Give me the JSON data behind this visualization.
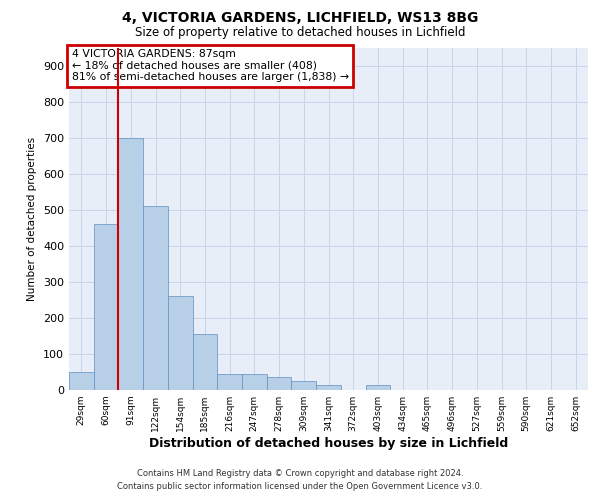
{
  "title_line1": "4, VICTORIA GARDENS, LICHFIELD, WS13 8BG",
  "title_line2": "Size of property relative to detached houses in Lichfield",
  "xlabel": "Distribution of detached houses by size in Lichfield",
  "ylabel": "Number of detached properties",
  "bar_labels": [
    "29sqm",
    "60sqm",
    "91sqm",
    "122sqm",
    "154sqm",
    "185sqm",
    "216sqm",
    "247sqm",
    "278sqm",
    "309sqm",
    "341sqm",
    "372sqm",
    "403sqm",
    "434sqm",
    "465sqm",
    "496sqm",
    "527sqm",
    "559sqm",
    "590sqm",
    "621sqm",
    "652sqm"
  ],
  "bar_values": [
    50,
    460,
    700,
    510,
    260,
    155,
    45,
    45,
    35,
    25,
    15,
    0,
    15,
    0,
    0,
    0,
    0,
    0,
    0,
    0,
    0
  ],
  "bar_color": "#b8cfe8",
  "bar_edge_color": "#6090c0",
  "red_line_color": "#cc0000",
  "box_edge_color": "#cc0000",
  "annotation_line1": "4 VICTORIA GARDENS: 87sqm",
  "annotation_line2": "← 18% of detached houses are smaller (408)",
  "annotation_line3": "81% of semi-detached houses are larger (1,838) →",
  "ylim": [
    0,
    950
  ],
  "yticks": [
    0,
    100,
    200,
    300,
    400,
    500,
    600,
    700,
    800,
    900
  ],
  "grid_color": "#c8d4e8",
  "bg_color": "#e8eef8",
  "footer_line1": "Contains HM Land Registry data © Crown copyright and database right 2024.",
  "footer_line2": "Contains public sector information licensed under the Open Government Licence v3.0."
}
